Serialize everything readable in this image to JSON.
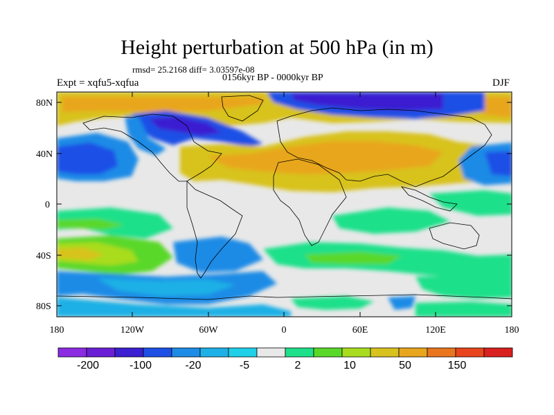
{
  "title": "Height perturbation at 500 hPa (in m)",
  "rmsd_text": "rmsd= 25.2168 diff= 3.03597e-08",
  "period_text": "0156kyr BP - 0000kyr BP",
  "expt_text": "Expt = xqfu5-xqfua",
  "season_text": "DJF",
  "map": {
    "projection": "cylindrical equidistant",
    "lon_range": [
      -180,
      180
    ],
    "lat_range": [
      -90,
      90
    ],
    "lat_ticks": [
      "80N",
      "40N",
      "0",
      "40S",
      "80S"
    ],
    "lon_ticks": [
      "180",
      "120W",
      "60W",
      "0",
      "60E",
      "120E",
      "180"
    ]
  },
  "colorbar": {
    "colors": [
      "#8b2be2",
      "#6a1fd6",
      "#3b1fd0",
      "#1e50e6",
      "#1e8be6",
      "#1fb0e6",
      "#1fd0e8",
      "#e8e8e8",
      "#1fe08a",
      "#5ad82a",
      "#a8dc1e",
      "#d8c21e",
      "#e8a61e",
      "#e8761e",
      "#e8451e",
      "#d8201e"
    ],
    "labels": [
      "-200",
      "-100",
      "-20",
      "-5",
      "2",
      "10",
      "50",
      "150"
    ]
  }
}
